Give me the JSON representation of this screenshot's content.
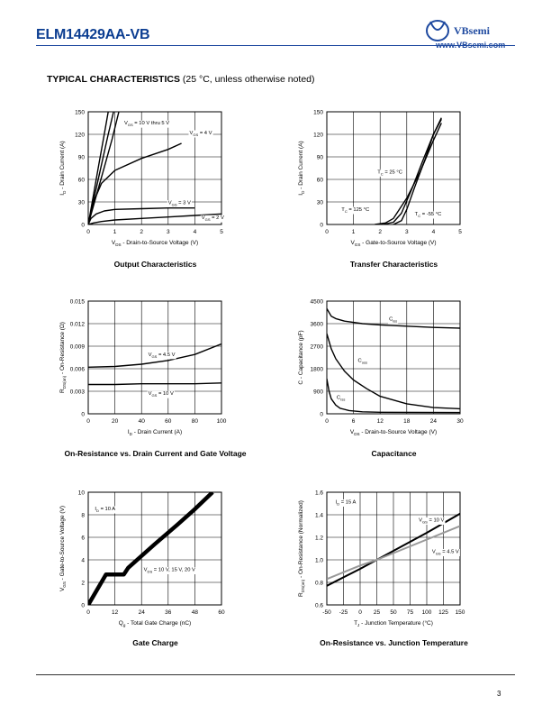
{
  "header": {
    "part_number": "ELM14429AA-VB",
    "brand": "VBsemi",
    "website": "www.VBsemi.com"
  },
  "section": {
    "title": "TYPICAL CHARACTERISTICS",
    "note": "(25 °C, unless otherwise noted)"
  },
  "page_number": "3",
  "chart_data": [
    {
      "id": "output",
      "type": "line",
      "caption": "Output Characteristics",
      "xlabel_main": "V",
      "xlabel_sub": "DS",
      "xlabel_rest": " - Drain-to-Source Voltage (V)",
      "ylabel_main": "I",
      "ylabel_sub": "D",
      "ylabel_rest": " - Drain Current (A)",
      "xlim": [
        0,
        5
      ],
      "ylim": [
        0,
        150
      ],
      "xticks": [
        "0",
        "1",
        "2",
        "3",
        "4",
        "5"
      ],
      "yticks": [
        "0",
        "30",
        "60",
        "90",
        "120",
        "150"
      ],
      "series": [
        {
          "name": "V_GS = 10 V thru 5 V",
          "x": [
            0,
            0.2,
            0.4,
            0.6,
            0.75
          ],
          "y": [
            0,
            40,
            80,
            120,
            150
          ]
        },
        {
          "name": "V_GS = 10 V thru 5 V (2)",
          "x": [
            0,
            0.25,
            0.5,
            0.75,
            0.95
          ],
          "y": [
            0,
            40,
            80,
            120,
            150
          ]
        },
        {
          "name": "V_GS = 10 V thru 5 V (3)",
          "x": [
            0,
            0.3,
            0.6,
            0.9,
            1.15
          ],
          "y": [
            0,
            38,
            76,
            114,
            150
          ]
        },
        {
          "name": "V_GS = 4 V",
          "x": [
            0,
            0.2,
            0.5,
            1,
            2,
            3,
            3.5
          ],
          "y": [
            0,
            30,
            55,
            72,
            88,
            100,
            108
          ]
        },
        {
          "name": "V_GS = 3 V",
          "x": [
            0,
            0.1,
            0.3,
            0.6,
            1,
            2,
            3,
            4
          ],
          "y": [
            0,
            8,
            14,
            18,
            20,
            21,
            22,
            22
          ]
        },
        {
          "name": "V_GS = 2 V",
          "x": [
            0,
            0.2,
            0.5,
            1,
            2,
            3,
            4,
            5
          ],
          "y": [
            0,
            2,
            4,
            6,
            8,
            10,
            12,
            14
          ]
        }
      ],
      "labels": [
        {
          "x": 1.35,
          "y": 133,
          "main": "V",
          "sub": "GS",
          "rest": " = 10 V thru 5 V"
        },
        {
          "x": 3.8,
          "y": 120,
          "main": "V",
          "sub": "GS",
          "rest": " = 4 V"
        },
        {
          "x": 3.0,
          "y": 27,
          "main": "V",
          "sub": "GS",
          "rest": " = 3 V"
        },
        {
          "x": 4.25,
          "y": 7,
          "main": "V",
          "sub": "GS",
          "rest": " = 2 V"
        }
      ]
    },
    {
      "id": "transfer",
      "type": "line",
      "caption": "Transfer Characteristics",
      "xlabel_main": "V",
      "xlabel_sub": "GS",
      "xlabel_rest": " - Gate-to-Source Voltage (V)",
      "ylabel_main": "I",
      "ylabel_sub": "D",
      "ylabel_rest": " - Drain Current (A)",
      "xlim": [
        0,
        5
      ],
      "ylim": [
        0,
        150
      ],
      "xticks": [
        "0",
        "1",
        "2",
        "3",
        "4",
        "5"
      ],
      "yticks": [
        "0",
        "30",
        "60",
        "90",
        "120",
        "150"
      ],
      "series": [
        {
          "name": "T_C = 125 °C",
          "x": [
            1.8,
            2.2,
            2.5,
            3,
            3.5,
            4,
            4.3
          ],
          "y": [
            0,
            2,
            8,
            35,
            70,
            112,
            135
          ]
        },
        {
          "name": "T_C = 25 °C",
          "x": [
            2.1,
            2.5,
            2.8,
            3.2,
            3.6,
            4,
            4.3
          ],
          "y": [
            0,
            3,
            15,
            48,
            85,
            120,
            140
          ]
        },
        {
          "name": "T_C = -55 °C",
          "x": [
            2.5,
            2.8,
            3,
            3.3,
            3.7,
            4,
            4.3
          ],
          "y": [
            0,
            5,
            20,
            50,
            88,
            120,
            142
          ]
        }
      ],
      "labels": [
        {
          "x": 1.9,
          "y": 68,
          "main": "T",
          "sub": "C",
          "rest": " = 25 °C"
        },
        {
          "x": 0.55,
          "y": 18,
          "main": "T",
          "sub": "C",
          "rest": " = 125 °C"
        },
        {
          "x": 3.3,
          "y": 12,
          "main": "T",
          "sub": "C",
          "rest": " = -55 °C"
        }
      ]
    },
    {
      "id": "onres_current",
      "type": "line",
      "caption": "On-Resistance vs. Drain Current and Gate Voltage",
      "xlabel_main": "I",
      "xlabel_sub": "D",
      "xlabel_rest": " - Drain Current (A)",
      "ylabel_main": "R",
      "ylabel_sub": "DS(on)",
      "ylabel_rest": " - On-Resistance (Ω)",
      "xlim": [
        0,
        100
      ],
      "ylim": [
        0,
        0.015
      ],
      "xticks": [
        "0",
        "20",
        "40",
        "60",
        "80",
        "100"
      ],
      "yticks": [
        "0",
        "0.003",
        "0.006",
        "0.009",
        "0.012",
        "0.015"
      ],
      "series": [
        {
          "name": "V_GS = 4.5 V",
          "x": [
            0,
            20,
            40,
            60,
            80,
            100
          ],
          "y": [
            0.0062,
            0.0063,
            0.0066,
            0.0071,
            0.0079,
            0.0093
          ]
        },
        {
          "name": "V_GS = 10 V",
          "x": [
            0,
            20,
            40,
            60,
            80,
            100
          ],
          "y": [
            0.0039,
            0.0039,
            0.004,
            0.004,
            0.004,
            0.0041
          ]
        }
      ],
      "labels": [
        {
          "x": 45,
          "y": 0.0077,
          "main": "V",
          "sub": "GS",
          "rest": " = 4.5 V"
        },
        {
          "x": 45,
          "y": 0.0025,
          "main": "V",
          "sub": "GS",
          "rest": " = 10 V"
        }
      ]
    },
    {
      "id": "capacitance",
      "type": "line",
      "caption": "Capacitance",
      "xlabel_main": "V",
      "xlabel_sub": "DS",
      "xlabel_rest": " - Drain-to-Source Voltage (V)",
      "ylabel_main": "C",
      "ylabel_sub": "",
      "ylabel_rest": " - Capacitance (pF)",
      "xlim": [
        0,
        30
      ],
      "ylim": [
        0,
        4500
      ],
      "xticks": [
        "0",
        "6",
        "12",
        "18",
        "24",
        "30"
      ],
      "yticks": [
        "0",
        "900",
        "1800",
        "2700",
        "3600",
        "4500"
      ],
      "series": [
        {
          "name": "C_iss",
          "x": [
            0,
            1,
            2,
            4,
            8,
            12,
            18,
            24,
            30
          ],
          "y": [
            4200,
            3900,
            3800,
            3700,
            3600,
            3550,
            3500,
            3450,
            3420
          ]
        },
        {
          "name": "C_oss",
          "x": [
            0,
            1,
            2,
            4,
            6,
            9,
            12,
            18,
            24,
            30
          ],
          "y": [
            3200,
            2600,
            2200,
            1700,
            1350,
            1000,
            700,
            400,
            250,
            200
          ]
        },
        {
          "name": "C_rss",
          "x": [
            0,
            0.5,
            1,
            2,
            3,
            5,
            8,
            12,
            30
          ],
          "y": [
            1400,
            900,
            600,
            350,
            220,
            130,
            80,
            60,
            50
          ]
        }
      ],
      "labels": [
        {
          "x": 14,
          "y": 3720,
          "main": "C",
          "sub": "iss",
          "rest": ""
        },
        {
          "x": 7,
          "y": 2070,
          "main": "C",
          "sub": "oss",
          "rest": ""
        },
        {
          "x": 2.2,
          "y": 600,
          "main": "C",
          "sub": "rss",
          "rest": ""
        }
      ]
    },
    {
      "id": "gate_charge",
      "type": "line",
      "caption": "Gate Charge",
      "xlabel_main": "Q",
      "xlabel_sub": "g",
      "xlabel_rest": " - Total Gate Charge (nC)",
      "ylabel_main": "V",
      "ylabel_sub": "GS",
      "ylabel_rest": " - Gate-to-Source Voltage (V)",
      "xlim": [
        0,
        60
      ],
      "ylim": [
        0,
        10
      ],
      "xticks": [
        "0",
        "12",
        "24",
        "36",
        "48",
        "60"
      ],
      "yticks": [
        "0",
        "2",
        "4",
        "6",
        "8",
        "10"
      ],
      "series": [
        {
          "name": "V_DS = 10 V, 15 V, 20 V",
          "x": [
            0,
            8,
            10,
            16,
            18,
            30,
            40,
            48,
            56
          ],
          "y": [
            0,
            2.7,
            2.7,
            2.7,
            3.3,
            5.4,
            7.1,
            8.5,
            10
          ]
        }
      ],
      "labels": [
        {
          "x": 25,
          "y": 3.0,
          "main": "V",
          "sub": "DS",
          "rest": " = 10 V, 15 V, 20 V"
        },
        {
          "x": 3,
          "y": 8.4,
          "main": "I",
          "sub": "D",
          "rest": " = 10 A"
        }
      ]
    },
    {
      "id": "onres_temp",
      "type": "line",
      "caption": "On-Resistance vs. Junction Temperature",
      "xlabel_main": "T",
      "xlabel_sub": "J",
      "xlabel_rest": " - Junction Temperature (°C)",
      "ylabel_main": "R",
      "ylabel_sub": "DS(on)",
      "ylabel_rest": " - On-Resistance (Normalized)",
      "xlim": [
        -50,
        150
      ],
      "ylim": [
        0.6,
        1.6
      ],
      "xticks": [
        "-50",
        "-25",
        "0",
        "25",
        "50",
        "75",
        "100",
        "125",
        "150"
      ],
      "yticks": [
        "0.6",
        "0.8",
        "1.0",
        "1.2",
        "1.4",
        "1.6"
      ],
      "series": [
        {
          "name": "V_GS = 10 V",
          "x": [
            -50,
            0,
            25,
            50,
            100,
            150
          ],
          "y": [
            0.77,
            0.92,
            1.0,
            1.08,
            1.24,
            1.41
          ]
        },
        {
          "name": "V_GS = 4.5 V",
          "x": [
            -50,
            0,
            25,
            50,
            100,
            150
          ],
          "y": [
            0.83,
            0.95,
            1.0,
            1.06,
            1.18,
            1.3
          ]
        }
      ],
      "labels": [
        {
          "x": 88,
          "y": 1.34,
          "main": "V",
          "sub": "GS",
          "rest": " = 10 V"
        },
        {
          "x": 108,
          "y": 1.06,
          "main": "V",
          "sub": "GS",
          "rest": " = 4.5 V"
        },
        {
          "x": -37,
          "y": 1.5,
          "main": "I",
          "sub": "D",
          "rest": " = 15 A"
        }
      ]
    }
  ]
}
